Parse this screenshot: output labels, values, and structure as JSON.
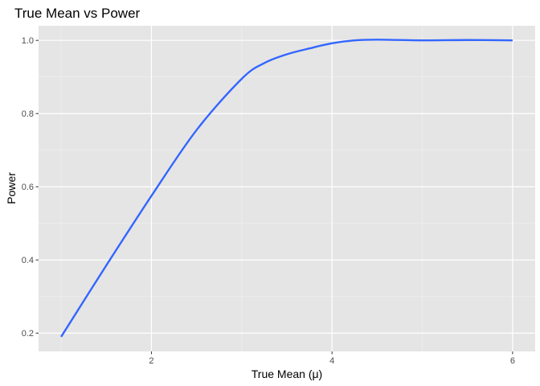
{
  "chart_data": {
    "type": "line",
    "title": "True Mean vs Power",
    "xlabel": "True Mean (μ)",
    "ylabel": "Power",
    "xlim": [
      0.75,
      6.25
    ],
    "ylim": [
      0.15,
      1.04
    ],
    "grid": true,
    "x_ticks": [
      2,
      4,
      6
    ],
    "x_minor_ticks": [
      1,
      3,
      5
    ],
    "y_ticks": [
      0.2,
      0.4,
      0.6,
      0.8,
      1.0
    ],
    "y_tick_labels": [
      "0.2",
      "0.4",
      "0.6",
      "0.8",
      "1.0"
    ],
    "y_minor_ticks": [
      0.3,
      0.5,
      0.7,
      0.9
    ],
    "series": [
      {
        "color": "#3366ff",
        "x": [
          1.0,
          1.5,
          2.0,
          2.5,
          3.0,
          3.25,
          3.5,
          3.75,
          4.0,
          4.25,
          4.5,
          5.0,
          5.5,
          6.0
        ],
        "y": [
          0.19,
          0.385,
          0.575,
          0.755,
          0.895,
          0.938,
          0.962,
          0.978,
          0.992,
          1.0,
          1.002,
          1.0,
          1.001,
          1.0
        ]
      }
    ]
  }
}
